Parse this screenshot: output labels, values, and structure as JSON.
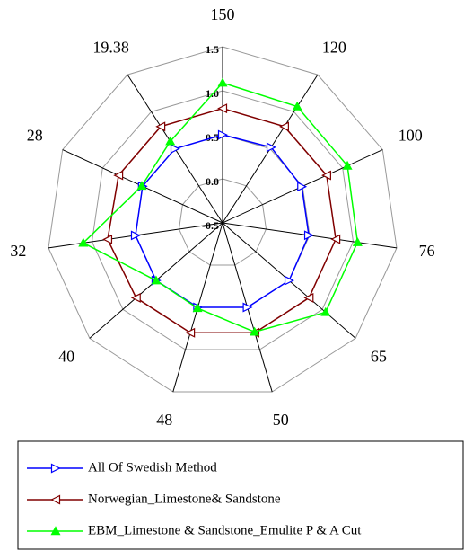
{
  "chart_data": {
    "type": "radar",
    "categories": [
      "150",
      "120",
      "100",
      "76",
      "65",
      "50",
      "48",
      "40",
      "32",
      "28",
      "19.38"
    ],
    "ylim": [
      -0.5,
      1.5
    ],
    "yticks": [
      -0.5,
      {
        "value": 0,
        "label": "0.0"
      },
      0.5,
      {
        "value": 1,
        "label": "1.0"
      },
      1.5
    ],
    "grid": true,
    "legend": "bottom",
    "series": [
      {
        "name": "All Of  Swedish Method",
        "color": "#0000ff",
        "marker": "triangle-right",
        "values": [
          0.5,
          0.52,
          0.49,
          0.49,
          0.5,
          0.5,
          0.5,
          0.5,
          0.5,
          0.5,
          0.5
        ]
      },
      {
        "name": "Norwegian_Limestone& Sandstone",
        "color": "#800000",
        "marker": "triangle-left",
        "values": [
          0.8,
          0.8,
          0.8,
          0.8,
          0.8,
          0.8,
          0.8,
          0.8,
          0.82,
          0.8,
          0.8
        ]
      },
      {
        "name": "EBM_Limestone & Sandstone_Emulite P & A Cut",
        "color": "#00ff00",
        "marker": "triangle-up",
        "values": [
          1.09,
          1.07,
          1.06,
          1.05,
          1.05,
          0.79,
          0.51,
          0.5,
          1.1,
          0.51,
          0.6
        ]
      }
    ]
  }
}
